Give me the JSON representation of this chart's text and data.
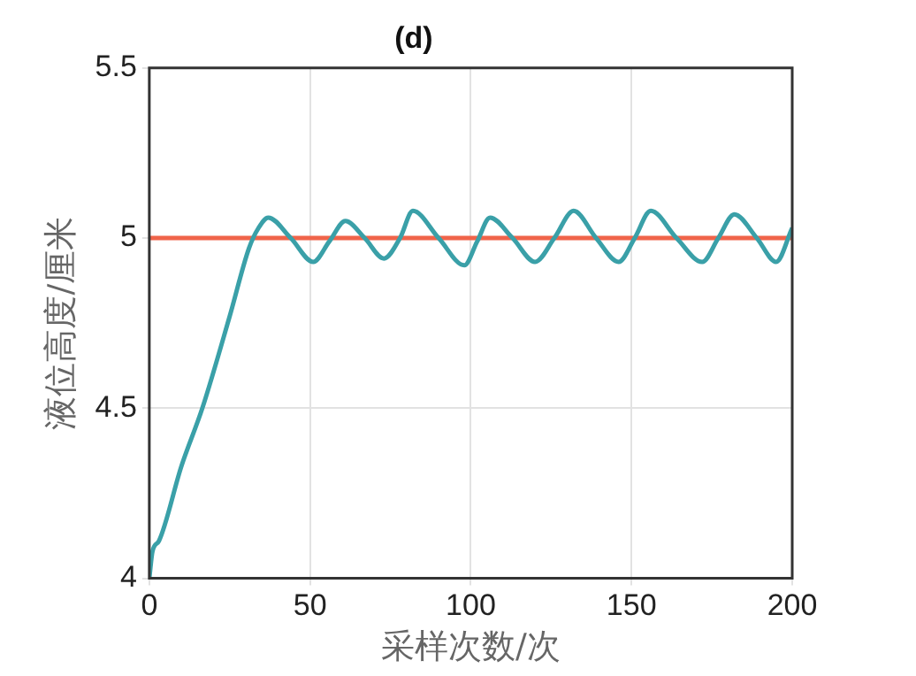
{
  "chart_data": {
    "type": "line",
    "title": "(d)",
    "xlabel": "采样次数/次",
    "ylabel": "液位高度/厘米",
    "x": [
      0,
      1,
      3,
      10,
      16.5,
      25,
      31,
      34,
      37,
      44,
      51,
      56,
      61,
      67,
      73,
      78,
      82,
      90,
      98,
      102,
      106,
      113,
      120,
      126,
      132,
      139,
      146,
      151,
      156,
      164,
      172,
      177,
      182,
      189,
      195,
      200
    ],
    "series": [
      {
        "color": "#3aa0a8",
        "values": [
          4.0,
          4.08,
          4.11,
          4.33,
          4.5,
          4.77,
          4.97,
          5.03,
          5.06,
          5.0,
          4.93,
          4.99,
          5.05,
          5.0,
          4.94,
          5.0,
          5.08,
          5.0,
          4.92,
          4.99,
          5.06,
          5.0,
          4.93,
          5.0,
          5.08,
          5.0,
          4.93,
          5.0,
          5.08,
          5.0,
          4.93,
          5.0,
          5.07,
          5.0,
          4.93,
          5.03
        ]
      }
    ],
    "ref_lines": [
      {
        "axis": "y",
        "value": 5,
        "color": "#f0644a"
      }
    ],
    "xlim": [
      0,
      200
    ],
    "xticks": [
      0,
      50,
      100,
      150,
      200
    ],
    "ylim": [
      4,
      5.5
    ],
    "yticks": [
      4,
      4.5,
      5,
      5.5
    ],
    "grid": true,
    "legend": false,
    "marker": "none",
    "line_style": "solid"
  }
}
